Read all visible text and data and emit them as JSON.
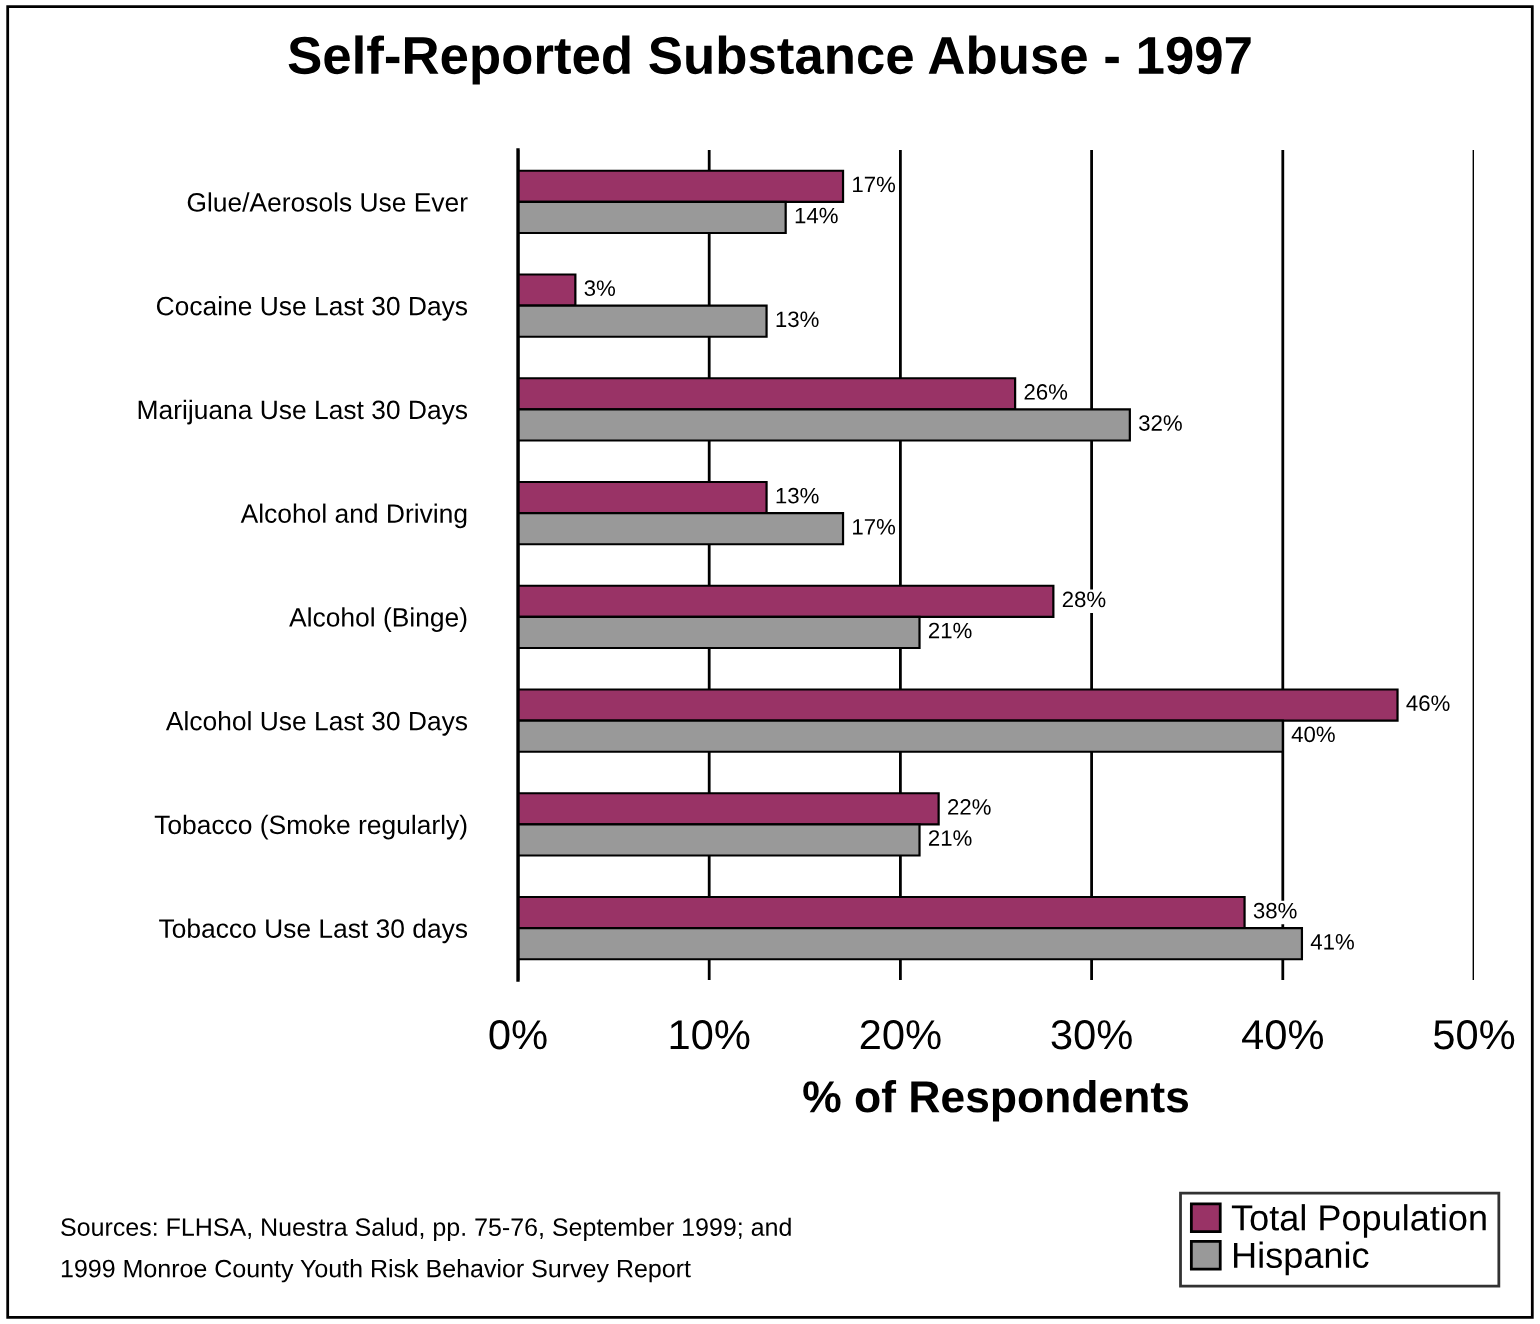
{
  "chart_data": {
    "type": "bar",
    "orientation": "horizontal",
    "title": "Self-Reported Substance Abuse - 1997",
    "xlabel": "% of Respondents",
    "categories": [
      "Glue/Aerosols Use Ever",
      "Cocaine Use Last 30 Days",
      "Marijuana Use Last 30 Days",
      "Alcohol and Driving",
      "Alcohol (Binge)",
      "Alcohol Use Last 30 Days",
      "Tobacco (Smoke regularly)",
      "Tobacco Use Last 30 days"
    ],
    "series": [
      {
        "name": "Total Population",
        "color": "#993366",
        "values": [
          17,
          3,
          26,
          13,
          28,
          46,
          22,
          38
        ],
        "value_labels": [
          "17%",
          "3%",
          "26%",
          "13%",
          "28%",
          "46%",
          "22%",
          "38%"
        ]
      },
      {
        "name": "Hispanic",
        "color": "#999999",
        "values": [
          14,
          13,
          32,
          17,
          21,
          40,
          21,
          41
        ],
        "value_labels": [
          "14%",
          "13%",
          "32%",
          "17%",
          "21%",
          "40%",
          "21%",
          "41%"
        ]
      }
    ],
    "xlim": [
      0,
      50
    ],
    "xticks": [
      {
        "value": 0,
        "label": "0%"
      },
      {
        "value": 10,
        "label": "10%"
      },
      {
        "value": 20,
        "label": "20%"
      },
      {
        "value": 30,
        "label": "30%"
      },
      {
        "value": 40,
        "label": "40%"
      },
      {
        "value": 50,
        "label": "50%"
      }
    ],
    "grid": "x",
    "legend": "bottom right",
    "annotations": [
      "Sources: FLHSA, Nuestra Salud, pp. 75-76, September 1999; and\n1999 Monroe County Youth Risk Behavior Survey Report"
    ]
  }
}
